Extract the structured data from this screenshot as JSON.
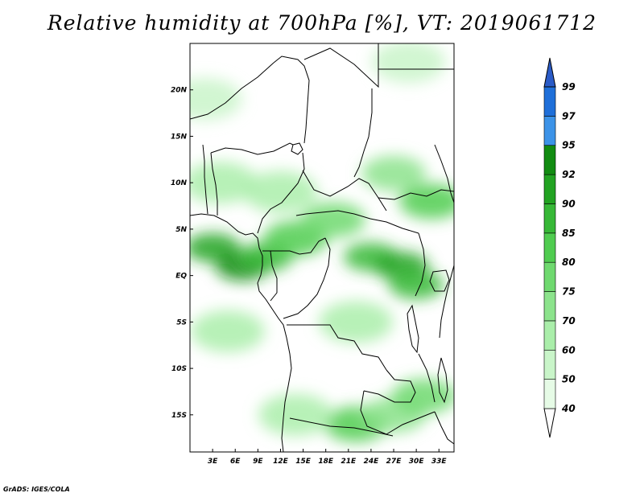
{
  "title": "Relative humidity at 700hPa [%], VT: 2019061712",
  "credit": "GrADS: IGES/COLA",
  "chart_data": {
    "type": "heatmap",
    "variable": "Relative humidity at 700hPa",
    "units": "%",
    "valid_time": "2019061712",
    "lon_range": [
      0,
      35
    ],
    "lat_range": [
      -19,
      25
    ],
    "lon_ticks": [
      "3E",
      "6E",
      "9E",
      "12E",
      "15E",
      "18E",
      "21E",
      "24E",
      "27E",
      "30E",
      "33E"
    ],
    "lon_tick_values": [
      3,
      6,
      9,
      12,
      15,
      18,
      21,
      24,
      27,
      30,
      33
    ],
    "lat_ticks": [
      "20N",
      "15N",
      "10N",
      "5N",
      "EQ",
      "5S",
      "10S",
      "15S"
    ],
    "lat_tick_values": [
      20,
      15,
      10,
      5,
      0,
      -5,
      -10,
      -15
    ],
    "colorbar": {
      "levels": [
        "40",
        "50",
        "60",
        "70",
        "75",
        "80",
        "85",
        "90",
        "92",
        "95",
        "97",
        "99"
      ],
      "level_values": [
        40,
        50,
        60,
        70,
        75,
        80,
        85,
        90,
        92,
        95,
        97,
        99
      ],
      "colors": [
        "#ffffff",
        "#e6fbe6",
        "#c9f5c9",
        "#aaeeaa",
        "#8ce38c",
        "#6fd96f",
        "#50cc50",
        "#37b837",
        "#22a322",
        "#128c12",
        "#3c93e8",
        "#1f6fd9",
        "#2a5bc7"
      ]
    },
    "humid_regions": [
      {
        "lon": 3,
        "lat": 3,
        "rh": 90
      },
      {
        "lon": 7,
        "lat": 1,
        "rh": 92
      },
      {
        "lon": 10,
        "lat": 2,
        "rh": 85
      },
      {
        "lon": 14,
        "lat": 4,
        "rh": 80
      },
      {
        "lon": 19,
        "lat": 6,
        "rh": 75
      },
      {
        "lon": 24,
        "lat": 2,
        "rh": 85
      },
      {
        "lon": 28,
        "lat": 1,
        "rh": 90
      },
      {
        "lon": 30,
        "lat": -1,
        "rh": 88
      },
      {
        "lon": 32,
        "lat": 8,
        "rh": 80
      },
      {
        "lon": 27,
        "lat": 11,
        "rh": 70
      },
      {
        "lon": 12,
        "lat": 9,
        "rh": 60
      },
      {
        "lon": 4,
        "lat": 10,
        "rh": 60
      },
      {
        "lon": 22,
        "lat": -5,
        "rh": 60
      },
      {
        "lon": 5,
        "lat": -6,
        "rh": 60
      },
      {
        "lon": 2,
        "lat": 19,
        "rh": 50
      },
      {
        "lon": 29,
        "lat": 23,
        "rh": 50
      },
      {
        "lon": 22,
        "lat": -16,
        "rh": 80
      },
      {
        "lon": 27,
        "lat": -15,
        "rh": 70
      },
      {
        "lon": 31,
        "lat": -13,
        "rh": 75
      },
      {
        "lon": 14,
        "lat": -15,
        "rh": 60
      }
    ]
  }
}
